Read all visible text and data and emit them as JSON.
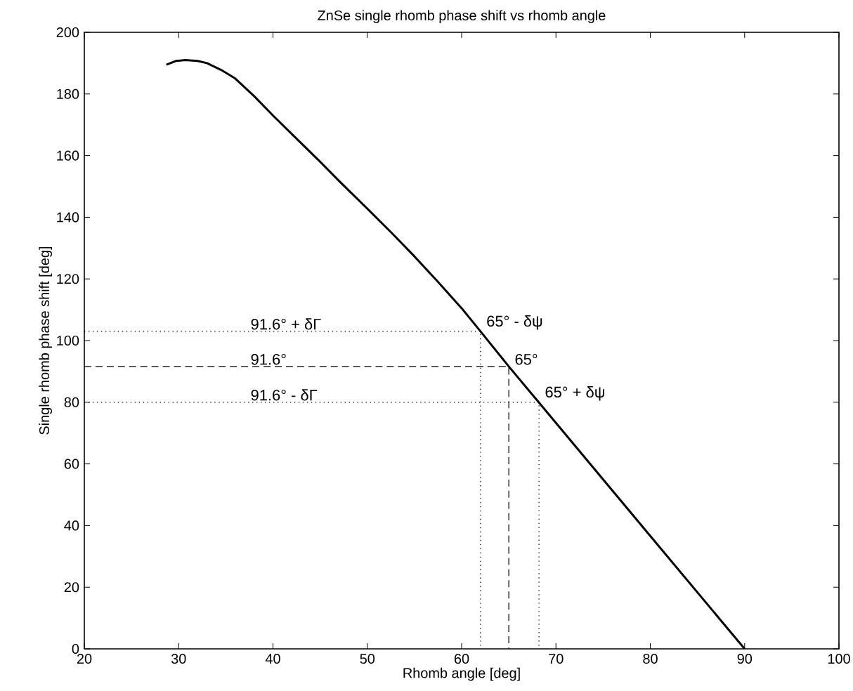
{
  "chart_data": {
    "type": "line",
    "title": "ZnSe single rhomb phase shift vs rhomb angle",
    "xlabel": "Rhomb angle [deg]",
    "ylabel": "Single rhomb phase shift [deg]",
    "xlim": [
      20,
      100
    ],
    "xticks": [
      20,
      30,
      40,
      50,
      60,
      70,
      80,
      90,
      100
    ],
    "ylim": [
      0,
      200
    ],
    "yticks": [
      0,
      20,
      40,
      60,
      80,
      100,
      120,
      140,
      160,
      180,
      200
    ],
    "series": [
      {
        "color": "#000000",
        "line_style": "solid",
        "x": [
          28.7,
          29.7,
          30.7,
          32,
          33,
          34.5,
          36,
          38,
          40,
          42,
          45,
          47,
          50,
          52.5,
          55,
          57.5,
          60,
          62,
          65,
          70,
          80,
          90
        ],
        "values": [
          189.5,
          190.7,
          191,
          190.7,
          190,
          187.8,
          185,
          179.3,
          173,
          167,
          158,
          151.8,
          142.8,
          135.2,
          127.3,
          119,
          110.5,
          103,
          91.6,
          73.3,
          36.6,
          0
        ]
      },
      {
        "color": "#000000",
        "line_style": "dotted",
        "x": [
          20,
          62,
          62
        ],
        "values": [
          103,
          103,
          0
        ]
      },
      {
        "color": "#000000",
        "line_style": "dashed",
        "x": [
          20,
          65,
          65
        ],
        "values": [
          91.6,
          91.6,
          0
        ]
      },
      {
        "color": "#000000",
        "line_style": "dotted",
        "x": [
          20,
          68.2,
          68.2
        ],
        "values": [
          80,
          80,
          0
        ]
      }
    ],
    "annotations": [
      {
        "text": "91.6° + δΓ",
        "x": 37,
        "y": 103
      },
      {
        "text": "91.6°",
        "x": 37,
        "y": 91.6
      },
      {
        "text": "91.6° - δΓ",
        "x": 37,
        "y": 80
      },
      {
        "text": "65° - δψ",
        "x": 62,
        "y": 103
      },
      {
        "text": "65°",
        "x": 65,
        "y": 91.6
      },
      {
        "text": "65° + δψ",
        "x": 68.2,
        "y": 80
      }
    ]
  }
}
